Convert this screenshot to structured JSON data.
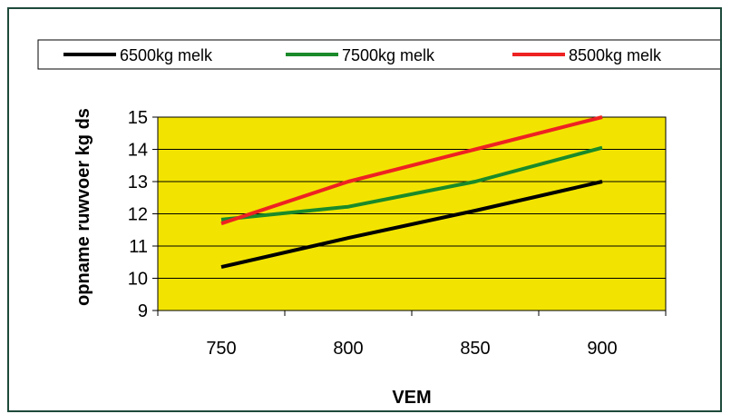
{
  "colors": {
    "plot_background": "#f2e400",
    "frame_border": "#1e4a3a",
    "gridline": "#000000"
  },
  "chart_data": {
    "type": "line",
    "title": "",
    "xlabel": "VEM",
    "ylabel": "opname ruwvoer  kg ds",
    "categories": [
      "750",
      "800",
      "850",
      "900"
    ],
    "x": [
      750,
      800,
      850,
      900
    ],
    "ylim": [
      9,
      15
    ],
    "yticks": [
      9,
      10,
      11,
      12,
      13,
      14,
      15
    ],
    "grid": true,
    "legend_position": "top",
    "series": [
      {
        "name": "6500kg melk",
        "color": "#000000",
        "values": [
          10.35,
          11.25,
          12.1,
          13.0
        ]
      },
      {
        "name": "7500kg melk",
        "color": "#1a8a2a",
        "values": [
          11.82,
          12.22,
          13.0,
          14.05
        ]
      },
      {
        "name": "8500kg melk",
        "color": "#ee2222",
        "values": [
          11.7,
          13.0,
          14.0,
          15.0
        ]
      }
    ]
  }
}
